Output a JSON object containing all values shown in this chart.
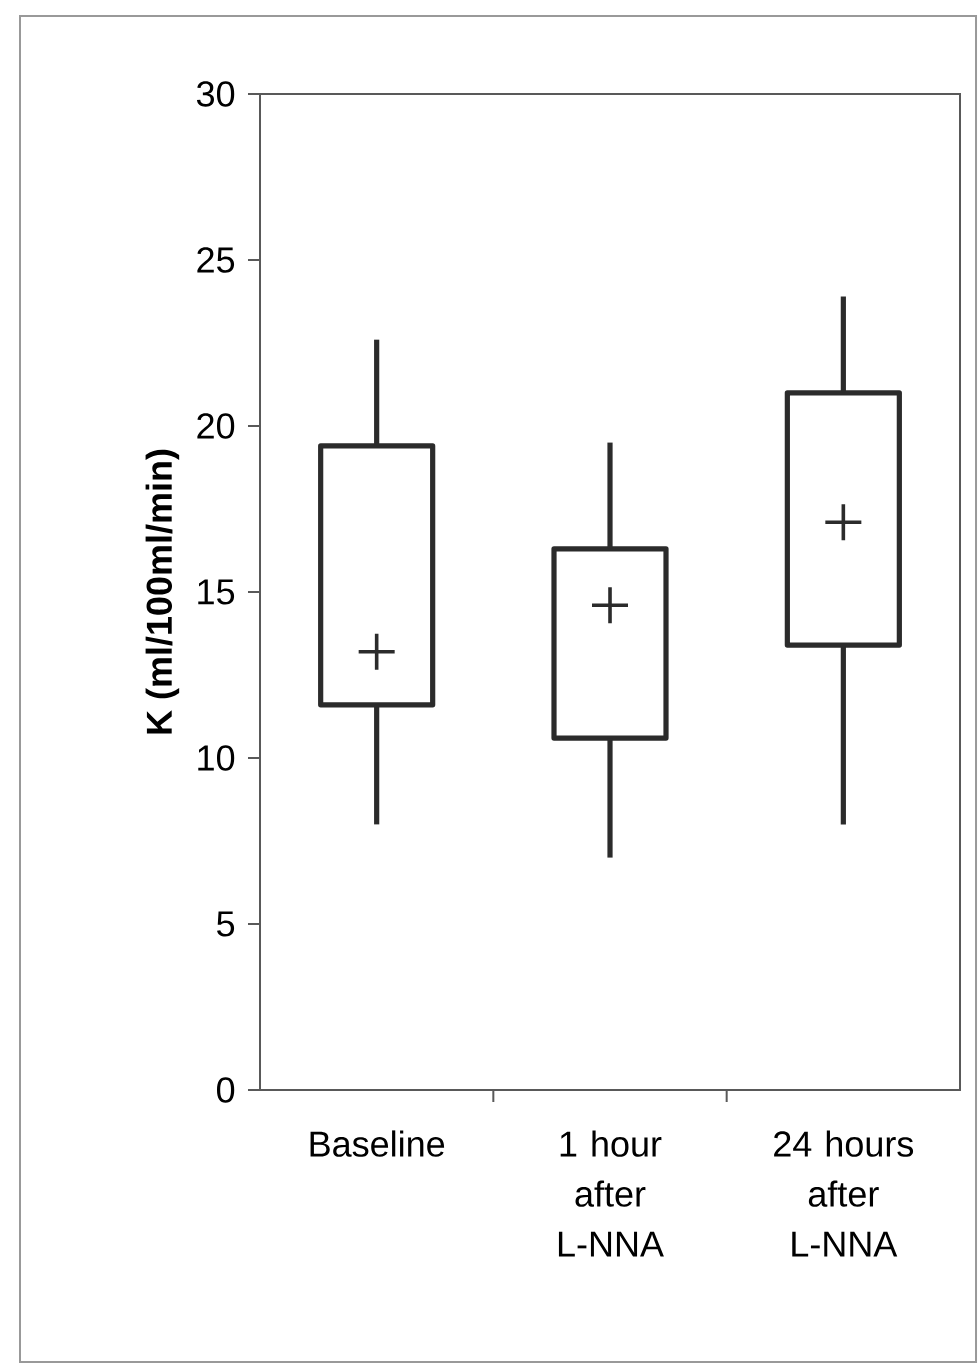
{
  "chart_data": {
    "type": "box",
    "ylabel": "K (ml/100ml/min)",
    "categories": [
      "Baseline",
      "1 hour after L-NNA",
      "24 hours after L-NNA"
    ],
    "boxes": [
      {
        "low": 8.0,
        "q1": 11.6,
        "q3": 19.4,
        "high": 22.6,
        "mean": 13.2
      },
      {
        "low": 7.0,
        "q1": 10.6,
        "q3": 16.3,
        "high": 19.5,
        "mean": 14.6
      },
      {
        "low": 8.0,
        "q1": 13.4,
        "q3": 21.0,
        "high": 23.9,
        "mean": 17.1
      }
    ],
    "color": "#2b2b2b",
    "marker": "cross",
    "ylim": [
      0,
      30
    ],
    "yticks": [
      0,
      5,
      10,
      15,
      20,
      25,
      30
    ],
    "grid": false
  }
}
